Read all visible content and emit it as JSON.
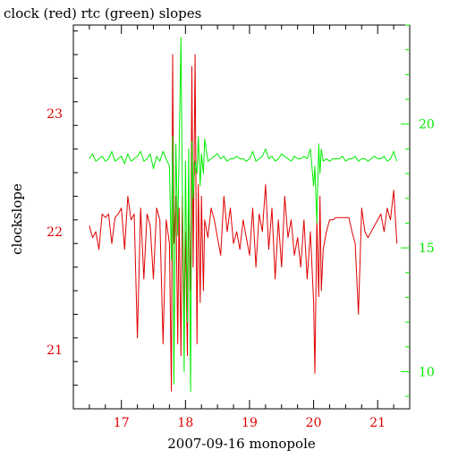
{
  "chart_data": {
    "type": "line",
    "title": "clock (red) rtc (green) slopes",
    "xlabel": "2007-09-16 monopole",
    "ylabel": "clockslope",
    "xlim": [
      16.25,
      21.5
    ],
    "ylim_left": [
      20.5,
      23.75
    ],
    "ylim_right": [
      8.5,
      24
    ],
    "x_ticks": [
      17,
      18,
      19,
      20,
      21
    ],
    "y_ticks_left": [
      21,
      22,
      23
    ],
    "y_ticks_right": [
      10,
      15,
      20
    ],
    "grid": false,
    "colors": {
      "clock": "#e00000",
      "rtc": "#00ee00",
      "axis": "#000000"
    },
    "series": [
      {
        "axis": "left",
        "color": "#e00000",
        "x": [
          16.5,
          16.55,
          16.6,
          16.65,
          16.7,
          16.75,
          16.8,
          16.85,
          16.9,
          16.95,
          17.0,
          17.05,
          17.1,
          17.15,
          17.2,
          17.25,
          17.3,
          17.35,
          17.4,
          17.45,
          17.5,
          17.55,
          17.6,
          17.65,
          17.7,
          17.75,
          17.78,
          17.8,
          17.82,
          17.85,
          17.88,
          17.9,
          17.93,
          17.95,
          17.98,
          18.0,
          18.03,
          18.05,
          18.08,
          18.1,
          18.12,
          18.15,
          18.18,
          18.2,
          18.23,
          18.25,
          18.28,
          18.3,
          18.35,
          18.4,
          18.45,
          18.5,
          18.55,
          18.6,
          18.65,
          18.7,
          18.75,
          18.8,
          18.85,
          18.9,
          18.95,
          19.0,
          19.05,
          19.1,
          19.15,
          19.2,
          19.25,
          19.3,
          19.35,
          19.4,
          19.45,
          19.5,
          19.55,
          19.6,
          19.65,
          19.7,
          19.75,
          19.8,
          19.85,
          19.9,
          19.95,
          20.0,
          20.02,
          20.05,
          20.08,
          20.1,
          20.12,
          20.15,
          20.2,
          20.25,
          20.3,
          20.35,
          20.4,
          20.45,
          20.5,
          20.55,
          20.6,
          20.65,
          20.7,
          20.75,
          20.8,
          20.85,
          20.9,
          20.95,
          21.0,
          21.05,
          21.1,
          21.15,
          21.2,
          21.25,
          21.3
        ],
        "y": [
          22.05,
          21.95,
          22.0,
          21.85,
          22.15,
          22.12,
          22.15,
          21.9,
          22.12,
          22.15,
          22.2,
          21.85,
          22.3,
          22.1,
          22.15,
          21.1,
          22.2,
          21.6,
          22.15,
          22.05,
          21.6,
          22.2,
          22.1,
          21.05,
          22.1,
          21.9,
          20.65,
          23.5,
          21.9,
          22.3,
          21.05,
          22.2,
          20.95,
          22.3,
          21.3,
          22.0,
          20.95,
          22.3,
          21.5,
          23.4,
          21.7,
          23.5,
          21.05,
          22.4,
          21.4,
          22.3,
          21.5,
          22.1,
          21.95,
          22.2,
          22.1,
          21.95,
          21.8,
          22.3,
          22.0,
          22.2,
          21.9,
          22.0,
          21.85,
          22.1,
          21.95,
          21.8,
          22.2,
          21.7,
          22.15,
          22.0,
          22.4,
          21.85,
          22.2,
          21.6,
          22.1,
          21.7,
          22.3,
          21.95,
          22.1,
          21.8,
          21.95,
          21.7,
          22.1,
          21.6,
          22.0,
          21.4,
          20.8,
          22.1,
          21.45,
          22.3,
          21.5,
          21.85,
          22.0,
          22.1,
          22.1,
          22.12,
          22.12,
          22.12,
          22.12,
          22.12,
          22.0,
          21.9,
          21.3,
          22.2,
          22.0,
          21.95,
          22.0,
          22.05,
          22.1,
          22.15,
          22.0,
          22.2,
          22.1,
          22.35,
          21.9
        ]
      },
      {
        "axis": "right",
        "color": "#00ee00",
        "x": [
          16.5,
          16.55,
          16.6,
          16.65,
          16.7,
          16.75,
          16.8,
          16.85,
          16.9,
          16.95,
          17.0,
          17.05,
          17.1,
          17.15,
          17.2,
          17.25,
          17.3,
          17.35,
          17.4,
          17.45,
          17.5,
          17.55,
          17.6,
          17.65,
          17.7,
          17.75,
          17.78,
          17.8,
          17.82,
          17.85,
          17.88,
          17.9,
          17.93,
          17.95,
          17.98,
          18.0,
          18.03,
          18.05,
          18.08,
          18.1,
          18.12,
          18.15,
          18.18,
          18.2,
          18.23,
          18.25,
          18.28,
          18.3,
          18.35,
          18.4,
          18.45,
          18.5,
          18.55,
          18.6,
          18.65,
          18.7,
          18.75,
          18.8,
          18.85,
          18.9,
          18.95,
          19.0,
          19.05,
          19.1,
          19.15,
          19.2,
          19.25,
          19.3,
          19.35,
          19.4,
          19.45,
          19.5,
          19.55,
          19.6,
          19.65,
          19.7,
          19.75,
          19.8,
          19.85,
          19.9,
          19.95,
          20.0,
          20.02,
          20.05,
          20.08,
          20.1,
          20.12,
          20.15,
          20.2,
          20.25,
          20.3,
          20.35,
          20.4,
          20.45,
          20.5,
          20.55,
          20.6,
          20.65,
          20.7,
          20.75,
          20.8,
          20.85,
          20.9,
          20.95,
          21.0,
          21.05,
          21.1,
          21.15,
          21.2,
          21.25,
          21.3
        ],
        "y": [
          18.6,
          18.8,
          18.5,
          18.6,
          18.7,
          18.5,
          18.6,
          18.9,
          18.5,
          18.6,
          18.7,
          18.4,
          18.8,
          18.5,
          18.6,
          18.7,
          18.9,
          18.5,
          18.6,
          18.8,
          18.2,
          18.7,
          18.5,
          18.9,
          18.6,
          18.3,
          14.5,
          19.5,
          9.5,
          19.2,
          15.5,
          18.8,
          23.5,
          17.5,
          10.0,
          18.5,
          12.0,
          19.0,
          9.2,
          19.3,
          17.0,
          18.5,
          18.0,
          19.5,
          17.5,
          18.8,
          18.0,
          19.4,
          18.5,
          18.6,
          18.7,
          18.8,
          18.6,
          18.7,
          18.5,
          18.6,
          18.6,
          18.7,
          18.6,
          18.6,
          18.5,
          18.6,
          18.9,
          18.5,
          18.6,
          18.7,
          19.0,
          18.6,
          18.7,
          18.5,
          18.6,
          18.8,
          18.7,
          18.6,
          18.5,
          18.7,
          18.6,
          18.6,
          18.7,
          18.6,
          19.0,
          17.5,
          18.3,
          16.0,
          19.2,
          18.0,
          19.0,
          18.5,
          18.6,
          18.5,
          18.6,
          18.6,
          18.6,
          18.7,
          18.5,
          18.6,
          18.6,
          18.7,
          18.5,
          18.6,
          18.6,
          18.5,
          18.6,
          18.7,
          18.6,
          18.6,
          18.7,
          18.5,
          18.6,
          18.9,
          18.5
        ]
      }
    ]
  }
}
